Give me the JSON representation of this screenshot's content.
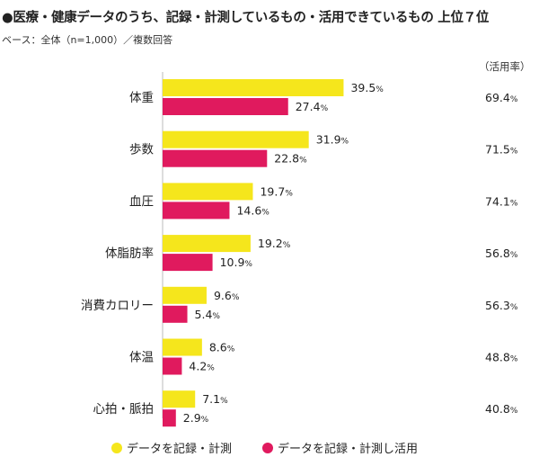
{
  "title": "●医療・健康データのうち、記録・計測しているもの・活用できているもの 上位７位",
  "base_note": "ベース：全体（n=1,000）／複数回答",
  "rate_header": "（活用率）",
  "colors": {
    "recorded": "#f5e61c",
    "utilized": "#e01a5e"
  },
  "chart_data": {
    "type": "bar",
    "orientation": "horizontal",
    "categories": [
      "体重",
      "歩数",
      "血圧",
      "体脂肪率",
      "消費カロリー",
      "体温",
      "心拍・脈拍"
    ],
    "series": [
      {
        "name": "データを記録・計測",
        "values": [
          39.5,
          31.9,
          19.7,
          19.2,
          9.6,
          8.6,
          7.1
        ]
      },
      {
        "name": "データを記録・計測し活用",
        "values": [
          27.4,
          22.8,
          14.6,
          10.9,
          5.4,
          4.2,
          2.9
        ]
      }
    ],
    "utilization_rate": [
      69.4,
      71.5,
      74.1,
      56.8,
      56.3,
      48.8,
      40.8
    ],
    "value_suffix": "%",
    "grid": false,
    "legend_position": "bottom"
  }
}
